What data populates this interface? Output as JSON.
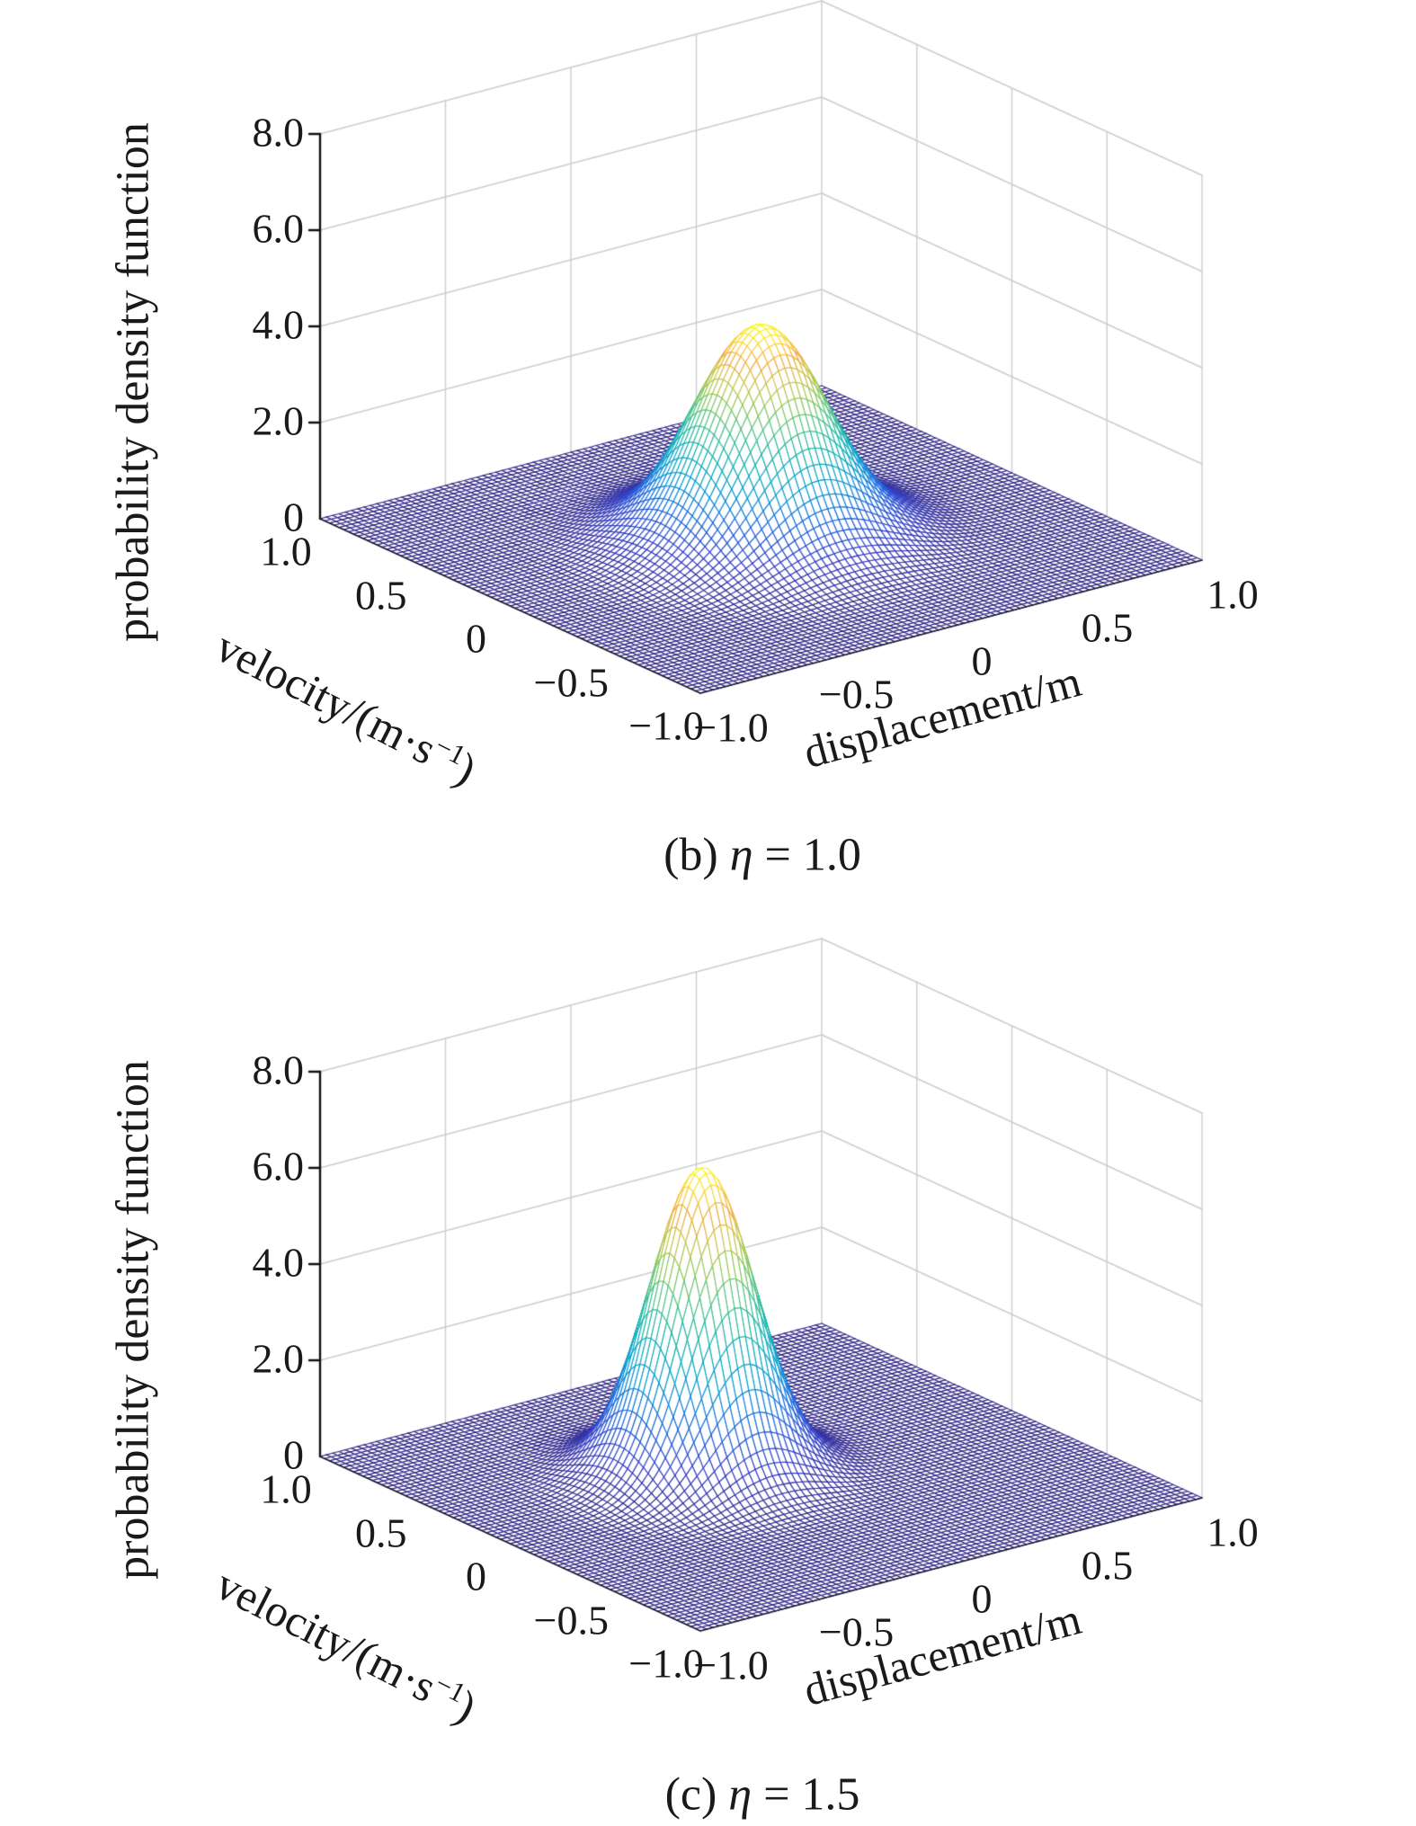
{
  "style": {
    "background": "#ffffff",
    "grid_color": "#cdcdcd",
    "axis_color": "#111111",
    "edge_color": "#1c1c30",
    "text_color": "#1a1a1a",
    "mesh_base_color": "#352a87",
    "colormap_parula": [
      [
        "0.00",
        "#352a87"
      ],
      [
        "0.12",
        "#3440c8"
      ],
      [
        "0.25",
        "#1a6ce1"
      ],
      [
        "0.38",
        "#07a0cf"
      ],
      [
        "0.50",
        "#18b5ae"
      ],
      [
        "0.62",
        "#55c487"
      ],
      [
        "0.72",
        "#9bc952"
      ],
      [
        "0.80",
        "#d2c54e"
      ],
      [
        "0.87",
        "#f0ac3c"
      ],
      [
        "0.93",
        "#fbd23c"
      ],
      [
        "1.00",
        "#f9fb1e"
      ]
    ]
  },
  "chart_data": [
    {
      "type": "surface",
      "caption": {
        "prefix": "(b) ",
        "symbol": "η",
        "suffix": " = 1.0",
        "full": "(b) η = 1.0"
      },
      "x_axis": {
        "label": "displacement/m",
        "range": [
          -1,
          1
        ],
        "tick_values": [
          -1,
          -0.5,
          0,
          0.5,
          1
        ],
        "tick_labels": [
          "−1.0",
          "−0.5",
          "0",
          "0.5",
          "1.0"
        ]
      },
      "y_axis": {
        "label": "velocity/(m·s−1)",
        "label_pre": "velocity/(m·s",
        "label_sup": "−1",
        "label_post": ")",
        "range": [
          -1,
          1
        ],
        "tick_values": [
          1,
          0.5,
          0,
          -0.5,
          -1
        ],
        "tick_labels": [
          "1.0",
          "0.5",
          "0",
          "−0.5",
          "−1.0"
        ]
      },
      "z_axis": {
        "label": "probability density function",
        "range": [
          0,
          8
        ],
        "tick_values": [
          8,
          6,
          4,
          2,
          0
        ],
        "tick_labels": [
          "8.0",
          "6.0",
          "4.0",
          "2.0",
          "0"
        ]
      },
      "surface": {
        "description": "joint probability density surface, bell-shaped peak on flat plane",
        "peak_value": 4.45,
        "peak_x": 0.0,
        "peak_y": 0.0,
        "sigma": 0.22,
        "ripple_amp": 0.06,
        "ripple_radius": 0.5,
        "ripple_width": 0.09,
        "grid_cells": 80
      }
    },
    {
      "type": "surface",
      "caption": {
        "prefix": "(c) ",
        "symbol": "η",
        "suffix": " = 1.5",
        "full": "(c) η = 1.5"
      },
      "x_axis": {
        "label": "displacement/m",
        "range": [
          -1,
          1
        ],
        "tick_values": [
          -1,
          -0.5,
          0,
          0.5,
          1
        ],
        "tick_labels": [
          "−1.0",
          "−0.5",
          "0",
          "0.5",
          "1.0"
        ]
      },
      "y_axis": {
        "label": "velocity/(m·s−1)",
        "label_pre": "velocity/(m·s",
        "label_sup": "−1",
        "label_post": ")",
        "range": [
          -1,
          1
        ],
        "tick_values": [
          1,
          0.5,
          0,
          -0.5,
          -1
        ],
        "tick_labels": [
          "1.0",
          "0.5",
          "0",
          "−0.5",
          "−1.0"
        ]
      },
      "z_axis": {
        "label": "probability density function",
        "range": [
          0,
          8
        ],
        "tick_values": [
          8,
          6,
          4,
          2,
          0
        ],
        "tick_labels": [
          "8.0",
          "6.0",
          "4.0",
          "2.0",
          "0"
        ]
      },
      "surface": {
        "description": "joint probability density surface, taller narrower bell-shaped peak",
        "peak_value": 6.33,
        "peak_x": -0.12,
        "peak_y": 0.15,
        "sigma": 0.17,
        "ripple_amp": 0.05,
        "ripple_radius": 0.4,
        "ripple_width": 0.08,
        "grid_cells": 80
      }
    }
  ]
}
